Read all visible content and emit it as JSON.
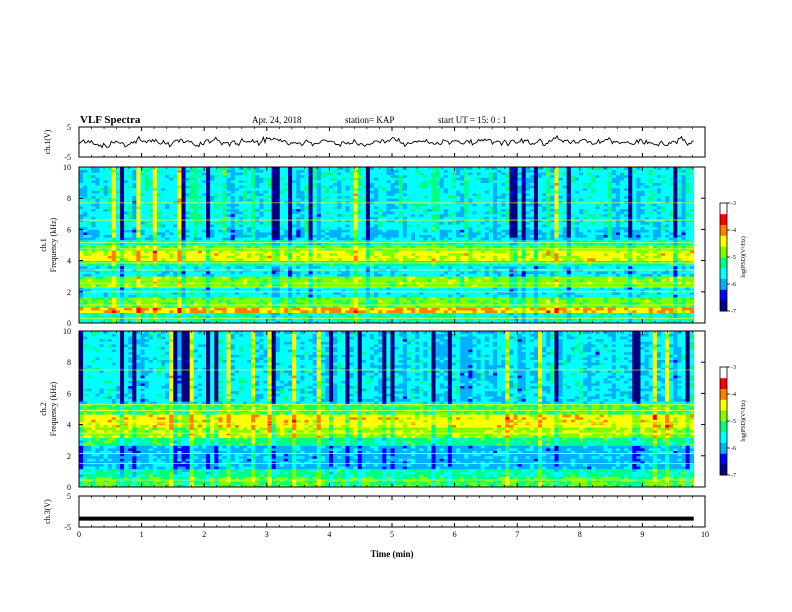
{
  "header": {
    "title": "VLF Spectra",
    "date": "Apr. 24, 2018",
    "station": "station= KAP",
    "start": "start  UT =   15: 0  : 1"
  },
  "chart_data": [
    {
      "type": "line",
      "panel": "ch1-waveform",
      "ylabel": "ch.1(V)",
      "ylim": [
        -5,
        5
      ],
      "yticks": [
        5,
        -5
      ],
      "xlim": [
        0,
        10
      ],
      "x_extent": [
        0,
        9.82
      ],
      "approx_level": 0.0,
      "approx_amplitude": 1.8,
      "color": "#000000"
    },
    {
      "type": "heatmap",
      "panel": "ch1-spectrogram",
      "ylabel": "ch.1 Frequency  (kHz)",
      "ylim": [
        0,
        10
      ],
      "yticks": [
        0,
        2,
        4,
        6,
        8,
        10
      ],
      "xlim": [
        0,
        10
      ],
      "x_extent": [
        0,
        9.82
      ],
      "colorbar": {
        "label": "log(PSD)(V²/Hz)",
        "range": [
          -7,
          -3
        ],
        "ticks": [
          -3,
          -4,
          -5,
          -6,
          -7
        ],
        "colormap": [
          "#000080",
          "#0000ff",
          "#00b0ff",
          "#00ffff",
          "#00ff80",
          "#80ff00",
          "#ffff00",
          "#ff8000",
          "#ff0000",
          "#ffffff"
        ]
      },
      "bands": [
        {
          "f": [
            0.0,
            0.6
          ],
          "level": -5.4
        },
        {
          "f": [
            0.6,
            1.0
          ],
          "level": -4.2
        },
        {
          "f": [
            1.0,
            1.6
          ],
          "level": -4.9
        },
        {
          "f": [
            1.6,
            2.4
          ],
          "level": -5.6
        },
        {
          "f": [
            2.4,
            3.0
          ],
          "level": -4.8
        },
        {
          "f": [
            3.0,
            3.6
          ],
          "level": -5.7
        },
        {
          "f": [
            3.6,
            4.0
          ],
          "level": -5.2
        },
        {
          "f": [
            4.0,
            4.6
          ],
          "level": -4.5
        },
        {
          "f": [
            4.6,
            5.0
          ],
          "level": -4.9
        },
        {
          "f": [
            5.0,
            5.4
          ],
          "level": -5.4
        },
        {
          "f": [
            5.4,
            6.0
          ],
          "level": -5.8
        },
        {
          "f": [
            6.0,
            10.0
          ],
          "level": -5.6
        }
      ],
      "line_freqs": [
        0.3,
        1.15,
        2.0,
        2.3,
        2.55,
        3.4,
        3.85,
        4.75,
        5.15,
        6.6,
        7.7
      ]
    },
    {
      "type": "heatmap",
      "panel": "ch2-spectrogram",
      "ylabel": "ch.2 Frequency  (kHz)",
      "ylim": [
        0,
        10
      ],
      "yticks": [
        0,
        2,
        4,
        6,
        8,
        10
      ],
      "xlim": [
        0,
        10
      ],
      "x_extent": [
        0,
        9.82
      ],
      "colorbar": {
        "label": "log(PSD)(V²/Hz)",
        "range": [
          -7,
          -3
        ],
        "ticks": [
          -3,
          -4,
          -5,
          -6,
          -7
        ],
        "colormap": [
          "#000080",
          "#0000ff",
          "#00b0ff",
          "#00ffff",
          "#00ff80",
          "#80ff00",
          "#ffff00",
          "#ff8000",
          "#ff0000",
          "#ffffff"
        ]
      },
      "bands": [
        {
          "f": [
            0.0,
            0.6
          ],
          "level": -5.0
        },
        {
          "f": [
            0.6,
            1.2
          ],
          "level": -5.3
        },
        {
          "f": [
            1.2,
            2.6
          ],
          "level": -5.9
        },
        {
          "f": [
            2.6,
            3.2
          ],
          "level": -5.2
        },
        {
          "f": [
            3.2,
            3.8
          ],
          "level": -4.7
        },
        {
          "f": [
            3.8,
            4.6
          ],
          "level": -4.4
        },
        {
          "f": [
            4.6,
            5.4
          ],
          "level": -5.0
        },
        {
          "f": [
            5.4,
            10.0
          ],
          "level": -5.7
        }
      ],
      "line_freqs": [
        0.45,
        1.5,
        2.15,
        3.45,
        4.05,
        4.9,
        5.3,
        7.5
      ]
    },
    {
      "type": "line",
      "panel": "ch3-waveform",
      "ylabel": "ch.3(V)",
      "ylim": [
        -5,
        5
      ],
      "yticks": [
        5,
        -5
      ],
      "xlim": [
        0,
        10
      ],
      "xticks": [
        0,
        1,
        2,
        3,
        4,
        5,
        6,
        7,
        8,
        9,
        10
      ],
      "xlabel": "Time  (min)",
      "x_extent": [
        0,
        9.82
      ],
      "constant_value": -2.3,
      "color": "#000000"
    }
  ]
}
